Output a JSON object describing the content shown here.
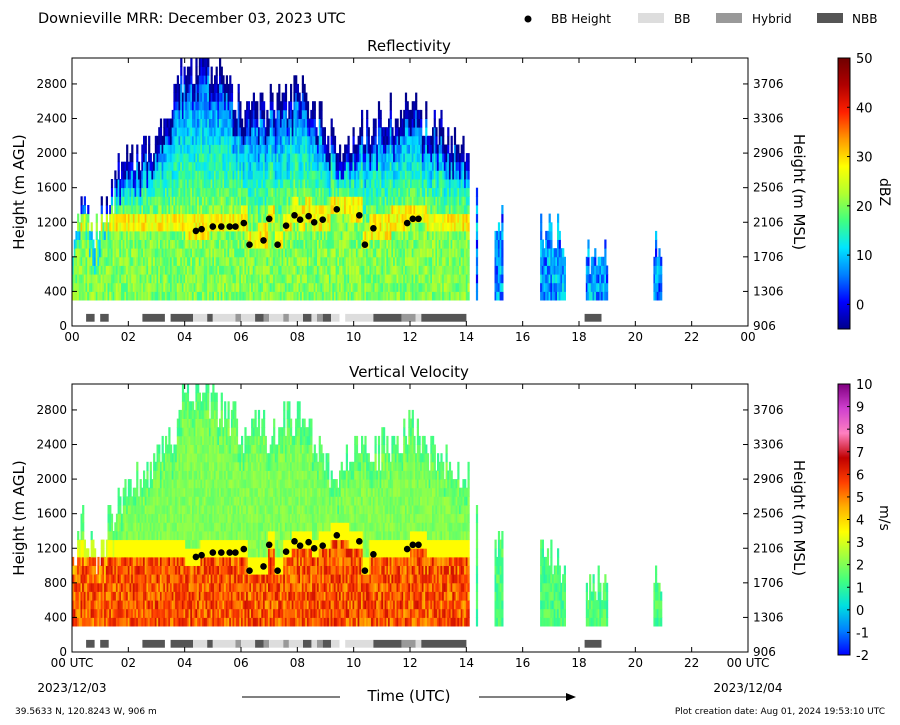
{
  "header": {
    "title": "Downieville MRR:  December 03, 2023 UTC",
    "legend": [
      {
        "label": "BB Height",
        "marker": "dot",
        "color": "#000000"
      },
      {
        "label": "BB",
        "marker": "rect",
        "color": "#dddddd"
      },
      {
        "label": "Hybrid",
        "marker": "rect",
        "color": "#999999"
      },
      {
        "label": "NBB",
        "marker": "rect",
        "color": "#555555"
      }
    ]
  },
  "footer": {
    "location": "39.5633 N, 120.8243 W, 906 m",
    "created": "Plot creation date: Aug 01, 2024 19:53:10 UTC",
    "xlabel": "Time (UTC)",
    "start_date": "2023/12/03",
    "end_date": "2023/12/04"
  },
  "chart_data": [
    {
      "type": "heatmap",
      "title": "Reflectivity",
      "ylabel": "Height (m AGL)",
      "y2label": "Height (m MSL)",
      "xlim": [
        0,
        24
      ],
      "ylim": [
        0,
        3100
      ],
      "xticks": [
        "00",
        "02",
        "04",
        "06",
        "08",
        "10",
        "12",
        "14",
        "16",
        "18",
        "20",
        "22",
        "00"
      ],
      "yticks": [
        0,
        400,
        800,
        1200,
        1600,
        2000,
        2400,
        2800
      ],
      "y2ticks": [
        "906",
        "1306",
        "1706",
        "2106",
        "2506",
        "2906",
        "3306",
        "3706"
      ],
      "colorbar": {
        "label": "dBZ",
        "min": -5,
        "max": 50,
        "ticks": [
          0,
          10,
          20,
          30,
          40,
          50
        ],
        "colors": [
          "#00008b",
          "#0000ff",
          "#0080ff",
          "#00e5ff",
          "#40ff80",
          "#b0ff30",
          "#ffff00",
          "#ff9900",
          "#ff2000",
          "#b00000",
          "#700000"
        ]
      },
      "echo_top_profile": [
        {
          "t": 0.0,
          "top": 1000
        },
        {
          "t": 0.4,
          "top": 1500
        },
        {
          "t": 0.8,
          "top": 1000
        },
        {
          "t": 1.2,
          "top": 1300
        },
        {
          "t": 1.6,
          "top": 1700
        },
        {
          "t": 2.2,
          "top": 1900
        },
        {
          "t": 2.8,
          "top": 2100
        },
        {
          "t": 3.4,
          "top": 2300
        },
        {
          "t": 4.0,
          "top": 3000
        },
        {
          "t": 5.0,
          "top": 2900
        },
        {
          "t": 6.0,
          "top": 2500
        },
        {
          "t": 7.0,
          "top": 2500
        },
        {
          "t": 8.0,
          "top": 2700
        },
        {
          "t": 8.7,
          "top": 2400
        },
        {
          "t": 9.3,
          "top": 2000
        },
        {
          "t": 10.0,
          "top": 2200
        },
        {
          "t": 11.0,
          "top": 2300
        },
        {
          "t": 12.0,
          "top": 2500
        },
        {
          "t": 13.0,
          "top": 2200
        },
        {
          "t": 14.0,
          "top": 2000
        },
        {
          "t": 14.6,
          "top": 1300
        },
        {
          "t": 15.5,
          "top": 1200
        },
        {
          "t": 16.6,
          "top": 1100
        },
        {
          "t": 18.2,
          "top": 800
        },
        {
          "t": 18.8,
          "top": 700
        },
        {
          "t": 20.7,
          "top": 900
        }
      ],
      "echo_segments": [
        [
          0.0,
          14.1
        ],
        [
          14.3,
          14.4
        ],
        [
          15.0,
          15.3
        ],
        [
          16.6,
          17.5
        ],
        [
          18.2,
          19.0
        ],
        [
          20.6,
          20.9
        ]
      ],
      "bright_band_heights": [
        {
          "t": 4.4,
          "h": 1100
        },
        {
          "t": 4.6,
          "h": 1120
        },
        {
          "t": 5.0,
          "h": 1150
        },
        {
          "t": 5.3,
          "h": 1150
        },
        {
          "t": 5.6,
          "h": 1150
        },
        {
          "t": 5.8,
          "h": 1150
        },
        {
          "t": 6.1,
          "h": 1190
        },
        {
          "t": 6.3,
          "h": 940
        },
        {
          "t": 6.8,
          "h": 990
        },
        {
          "t": 7.0,
          "h": 1240
        },
        {
          "t": 7.3,
          "h": 940
        },
        {
          "t": 7.6,
          "h": 1160
        },
        {
          "t": 7.9,
          "h": 1280
        },
        {
          "t": 8.1,
          "h": 1230
        },
        {
          "t": 8.4,
          "h": 1270
        },
        {
          "t": 8.6,
          "h": 1200
        },
        {
          "t": 8.9,
          "h": 1230
        },
        {
          "t": 9.4,
          "h": 1350
        },
        {
          "t": 10.2,
          "h": 1280
        },
        {
          "t": 10.4,
          "h": 940
        },
        {
          "t": 10.7,
          "h": 1130
        },
        {
          "t": 11.9,
          "h": 1190
        },
        {
          "t": 12.1,
          "h": 1240
        },
        {
          "t": 12.3,
          "h": 1240
        }
      ],
      "bb_type_bar": [
        {
          "start": 0.5,
          "end": 0.8,
          "type": "NBB"
        },
        {
          "start": 1.0,
          "end": 1.3,
          "type": "NBB"
        },
        {
          "start": 2.5,
          "end": 3.3,
          "type": "NBB"
        },
        {
          "start": 3.5,
          "end": 4.3,
          "type": "NBB"
        },
        {
          "start": 4.3,
          "end": 4.8,
          "type": "BB"
        },
        {
          "start": 4.8,
          "end": 5.0,
          "type": "NBB"
        },
        {
          "start": 5.0,
          "end": 5.8,
          "type": "BB"
        },
        {
          "start": 5.8,
          "end": 6.0,
          "type": "Hybrid"
        },
        {
          "start": 6.0,
          "end": 6.5,
          "type": "BB"
        },
        {
          "start": 6.5,
          "end": 6.8,
          "type": "NBB"
        },
        {
          "start": 6.8,
          "end": 7.0,
          "type": "Hybrid"
        },
        {
          "start": 7.0,
          "end": 7.5,
          "type": "BB"
        },
        {
          "start": 7.5,
          "end": 7.7,
          "type": "Hybrid"
        },
        {
          "start": 7.7,
          "end": 8.2,
          "type": "BB"
        },
        {
          "start": 8.2,
          "end": 8.5,
          "type": "NBB"
        },
        {
          "start": 8.5,
          "end": 8.7,
          "type": "BB"
        },
        {
          "start": 8.7,
          "end": 8.9,
          "type": "Hybrid"
        },
        {
          "start": 8.9,
          "end": 9.2,
          "type": "NBB"
        },
        {
          "start": 9.2,
          "end": 9.5,
          "type": "BB"
        },
        {
          "start": 9.7,
          "end": 10.7,
          "type": "BB"
        },
        {
          "start": 10.7,
          "end": 11.7,
          "type": "NBB"
        },
        {
          "start": 11.7,
          "end": 12.2,
          "type": "Hybrid"
        },
        {
          "start": 12.2,
          "end": 12.4,
          "type": "BB"
        },
        {
          "start": 12.4,
          "end": 14.0,
          "type": "NBB"
        },
        {
          "start": 18.2,
          "end": 18.8,
          "type": "NBB"
        }
      ]
    },
    {
      "type": "heatmap",
      "title": "Vertical Velocity",
      "ylabel": "Height (m AGL)",
      "y2label": "Height (m MSL)",
      "xlim": [
        0,
        24
      ],
      "ylim": [
        0,
        3100
      ],
      "xticks": [
        "00 UTC",
        "02",
        "04",
        "06",
        "08",
        "10",
        "12",
        "14",
        "16",
        "18",
        "20",
        "22",
        "00 UTC"
      ],
      "yticks": [
        0,
        400,
        800,
        1200,
        1600,
        2000,
        2400,
        2800
      ],
      "y2ticks": [
        "906",
        "1306",
        "1706",
        "2106",
        "2506",
        "2906",
        "3306",
        "3706"
      ],
      "colorbar": {
        "label": "m/s",
        "min": -2,
        "max": 10,
        "ticks": [
          -2,
          -1,
          0,
          1,
          2,
          3,
          4,
          5,
          6,
          7,
          8,
          9,
          10
        ],
        "colors": [
          "#0000ff",
          "#0080ff",
          "#00e0e0",
          "#40ff80",
          "#a0ff40",
          "#ffff00",
          "#ffb000",
          "#ff4000",
          "#c00000",
          "#ff80c0",
          "#d040d0",
          "#800080"
        ]
      },
      "echo_top_profile": "same as Reflectivity",
      "fall_speed_note": "1-2 m/s aloft, 5-6 m/s below bright band",
      "bright_band_heights": "same as Reflectivity",
      "bb_type_bar": "same as Reflectivity"
    }
  ]
}
